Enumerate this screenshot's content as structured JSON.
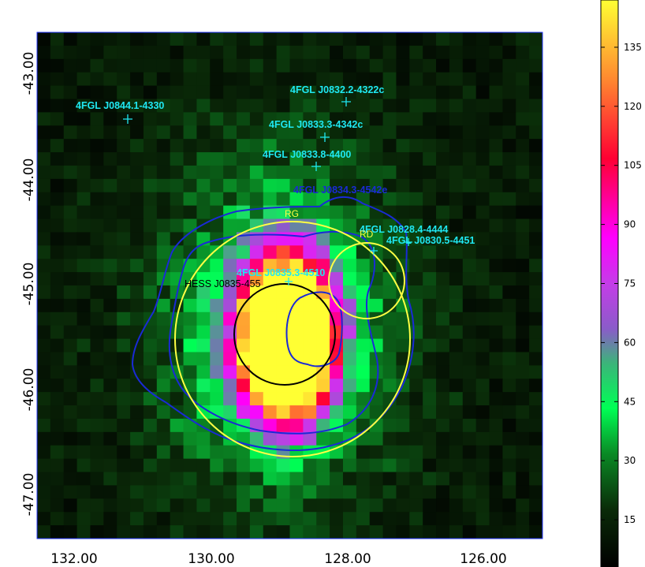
{
  "chart_data": {
    "type": "heatmap",
    "title": "",
    "xlabel": "",
    "ylabel": "",
    "x_range_deg": [
      132.6,
      125.0
    ],
    "y_range_deg": [
      -47.7,
      -42.7
    ],
    "x_ticks": [
      132.0,
      130.0,
      128.0,
      126.0
    ],
    "x_tick_labels": [
      "132.00",
      "130.00",
      "128.00",
      "126.00"
    ],
    "y_ticks": [
      -43.0,
      -44.0,
      -45.0,
      -46.0,
      -47.0
    ],
    "y_tick_labels": [
      "-43.00",
      "-44.00",
      "-45.00",
      "-46.00",
      "-47.00"
    ],
    "colorbar": {
      "min": 3,
      "max": 147,
      "ticks": [
        15,
        30,
        45,
        60,
        75,
        90,
        105,
        120,
        135
      ],
      "tick_labels": [
        "15",
        "30",
        "45",
        "60",
        "75",
        "90",
        "105",
        "120",
        "135"
      ],
      "colormap": [
        "#000000",
        "#00ff55",
        "#8a5cc9",
        "#ff00ff",
        "#ff0033",
        "#ffc02a",
        "#ffff33"
      ]
    },
    "map_pixels": {
      "cols": 38,
      "rows": 38
    },
    "emission": {
      "peak_center": [
        128.85,
        -45.72
      ],
      "peak_sigma_deg": [
        0.55,
        0.62
      ],
      "peak_amplitude": 210,
      "halo_center": [
        129.0,
        -45.6
      ],
      "halo_sigma_deg": [
        1.2,
        1.1
      ],
      "halo_amplitude": 38,
      "background": 14
    },
    "sources": [
      {
        "label": "4FGL J0844.1-4330",
        "ra": 131.14,
        "dec": -43.53
      },
      {
        "label": "4FGL J0832.2-4322c",
        "ra": 128.04,
        "dec": -43.37
      },
      {
        "label": "4FGL J0833.3-4342c",
        "ra": 128.33,
        "dec": -43.7
      },
      {
        "label": "4FGL J0833.8-4400",
        "ra": 128.46,
        "dec": -43.97
      },
      {
        "label": "4FGL J0834.3-4542e",
        "ra": 128.58,
        "dec": -44.45
      },
      {
        "label": "4FGL J0828.4-4444",
        "ra": 127.7,
        "dec": -44.88
      },
      {
        "label": "4FGL J0830.5-4451",
        "ra": 127.29,
        "dec": -44.84
      },
      {
        "label": "4FGL J0835.3-4510",
        "ra": 128.84,
        "dec": -45.17
      }
    ],
    "hess_label": "HESS J0835-455",
    "regions": [
      {
        "label": "RG",
        "center": [
          128.87,
          -45.65
        ],
        "radius_deg": 1.22,
        "color": "#ffff44"
      },
      {
        "label": "RD",
        "center": [
          127.72,
          -45.09
        ],
        "radius_deg": 0.43,
        "color": "#ffff44"
      },
      {
        "label": "",
        "center": [
          128.87,
          -45.63
        ],
        "radius_deg": 0.58,
        "color": "#000000"
      }
    ],
    "contours_color": "#1a2ad6",
    "colors": {
      "source_label": "#1fe8f2",
      "region": "#ffff44",
      "contour": "#1a2ad6",
      "frame": "#2233ff"
    }
  }
}
